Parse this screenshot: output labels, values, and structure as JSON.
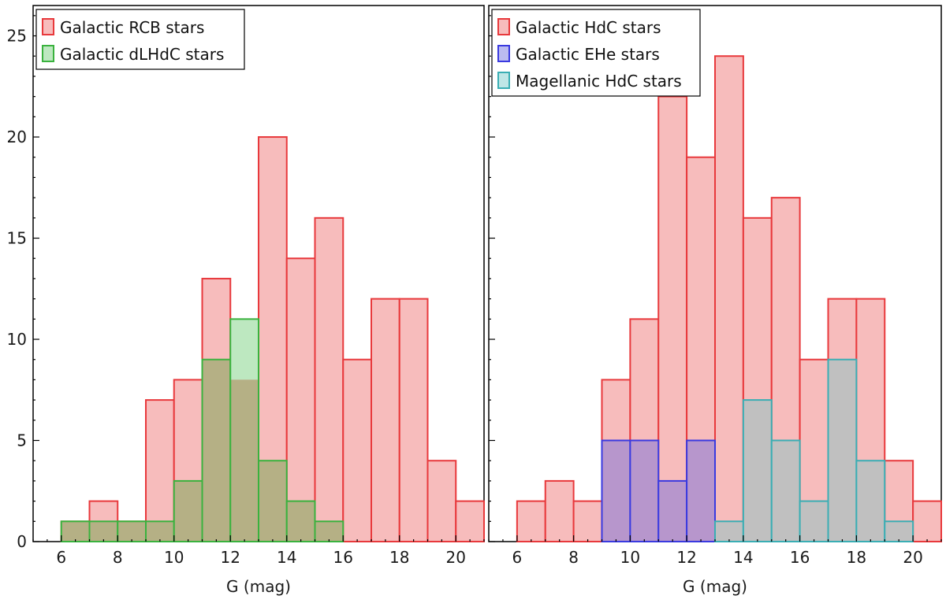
{
  "chart_data": [
    {
      "type": "histogram",
      "panel": "left",
      "xlabel": "G (mag)",
      "ylabel": "",
      "xlim": [
        5,
        21
      ],
      "ylim": [
        0,
        26.5
      ],
      "xticks": [
        6,
        8,
        10,
        12,
        14,
        16,
        18,
        20
      ],
      "yticks": [
        0,
        5,
        10,
        15,
        20,
        25
      ],
      "legend_position": "top-left",
      "series": [
        {
          "name": "Galactic RCB stars",
          "fill": "#f7bcbc",
          "stroke": "#e8393c",
          "bins": [
            [
              6,
              7,
              1
            ],
            [
              7,
              8,
              2
            ],
            [
              8,
              9,
              1
            ],
            [
              9,
              10,
              7
            ],
            [
              10,
              11,
              8
            ],
            [
              11,
              12,
              13
            ],
            [
              12,
              13,
              8
            ],
            [
              13,
              14,
              20
            ],
            [
              14,
              15,
              14
            ],
            [
              15,
              16,
              16
            ],
            [
              16,
              17,
              9
            ],
            [
              17,
              18,
              12
            ],
            [
              18,
              19,
              12
            ],
            [
              19,
              20,
              4
            ],
            [
              20,
              21,
              2
            ]
          ]
        },
        {
          "name": "Galactic dLHdC stars",
          "fill": "#bde8c0",
          "stroke": "#3ab23e",
          "bins": [
            [
              6,
              7,
              1
            ],
            [
              7,
              8,
              1
            ],
            [
              8,
              9,
              1
            ],
            [
              9,
              10,
              1
            ],
            [
              10,
              11,
              3
            ],
            [
              11,
              12,
              9
            ],
            [
              12,
              13,
              11
            ],
            [
              13,
              14,
              4
            ],
            [
              14,
              15,
              2
            ],
            [
              15,
              16,
              1
            ]
          ]
        }
      ],
      "overlap": {
        "fill": "#b5b085",
        "stroke": "#3ab23e"
      }
    },
    {
      "type": "histogram",
      "panel": "right",
      "xlabel": "G (mag)",
      "ylabel": "",
      "xlim": [
        5,
        21
      ],
      "ylim": [
        0,
        26.5
      ],
      "xticks": [
        6,
        8,
        10,
        12,
        14,
        16,
        18,
        20
      ],
      "yticks": [
        0,
        5,
        10,
        15,
        20,
        25
      ],
      "legend_position": "top-left",
      "series": [
        {
          "name": "Galactic HdC stars",
          "fill": "#f7bcbc",
          "stroke": "#e8393c",
          "bins": [
            [
              6,
              7,
              2
            ],
            [
              7,
              8,
              3
            ],
            [
              8,
              9,
              2
            ],
            [
              9,
              10,
              8
            ],
            [
              10,
              11,
              11
            ],
            [
              11,
              12,
              22
            ],
            [
              12,
              13,
              19
            ],
            [
              13,
              14,
              24
            ],
            [
              14,
              15,
              16
            ],
            [
              15,
              16,
              17
            ],
            [
              16,
              17,
              9
            ],
            [
              17,
              18,
              12
            ],
            [
              18,
              19,
              12
            ],
            [
              19,
              20,
              4
            ],
            [
              20,
              21,
              2
            ]
          ]
        },
        {
          "name": "Galactic EHe stars",
          "fill": "#bcbcf0",
          "stroke": "#3a3ae0",
          "bins": [
            [
              9,
              10,
              5
            ],
            [
              10,
              11,
              5
            ],
            [
              11,
              12,
              3
            ],
            [
              12,
              13,
              5
            ]
          ]
        },
        {
          "name": "Magellanic HdC stars",
          "fill": "#bfe6e6",
          "stroke": "#3aaeb4",
          "bins": [
            [
              13,
              14,
              1
            ],
            [
              14,
              15,
              7
            ],
            [
              15,
              16,
              5
            ],
            [
              16,
              17,
              2
            ],
            [
              17,
              18,
              9
            ],
            [
              18,
              19,
              4
            ],
            [
              19,
              20,
              1
            ]
          ]
        }
      ],
      "overlap_colors": {
        "blue": "#b796cc",
        "cyan": "#c0c0c0"
      }
    }
  ]
}
